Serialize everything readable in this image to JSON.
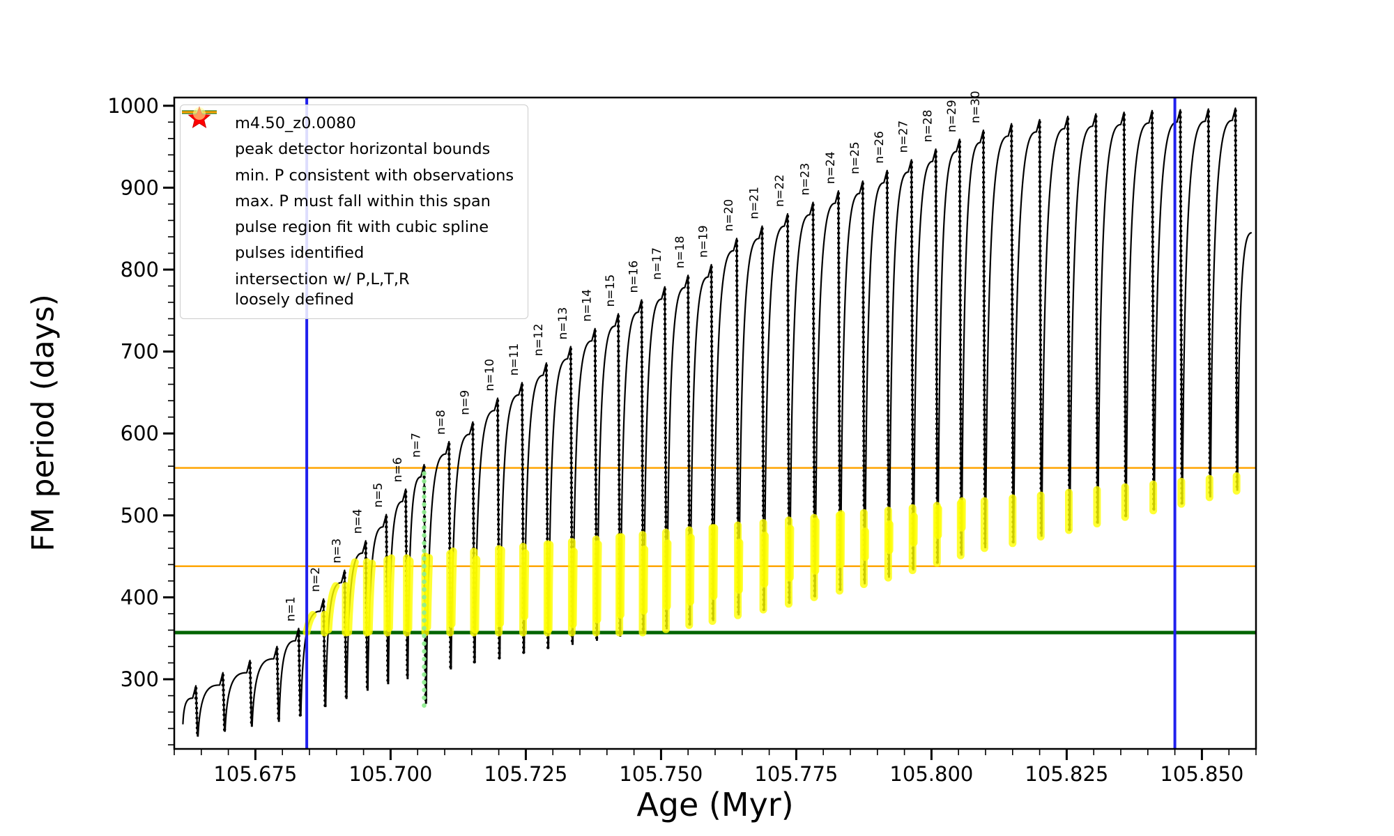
{
  "figure": {
    "background": "#ffffff"
  },
  "chart_data": {
    "type": "line",
    "title": "",
    "xlabel": "Age (Myr)",
    "ylabel": "FM period (days)",
    "xlim": [
      105.66,
      105.86
    ],
    "ylim": [
      215,
      1010
    ],
    "x_major_ticks": [
      105.675,
      105.7,
      105.725,
      105.75,
      105.775,
      105.8,
      105.825,
      105.85
    ],
    "x_minor_step": 0.005,
    "y_major_ticks": [
      300,
      400,
      500,
      600,
      700,
      800,
      900,
      1000
    ],
    "y_minor_step": 20,
    "series_label": "m4.50_z0.0080",
    "legend": {
      "position": "upper left",
      "entries": [
        {
          "marker": "line-dot",
          "icon": "series-line-icon",
          "color": "#000000",
          "label": "m4.50_z0.0080"
        },
        {
          "marker": "line-thick",
          "icon": "blue-bound-line-icon",
          "color": "#2020ee",
          "label": "peak detector horizontal bounds"
        },
        {
          "marker": "line-thick",
          "icon": "green-min-line-icon",
          "color": "#006400",
          "label": "min. P consistent with observations"
        },
        {
          "marker": "line",
          "icon": "orange-span-line-icon",
          "color": "#ffa500",
          "label": "max. P must fall within this span"
        },
        {
          "marker": "dot-small",
          "icon": "spline-dot-icon",
          "color": "#90ee90",
          "label": "pulse region fit with cubic spline"
        },
        {
          "marker": "star",
          "icon": "pulse-star-icon",
          "color": "#ff0000",
          "label": "pulses identified"
        },
        {
          "marker": "dot-large",
          "icon": "intersection-dot-icon",
          "color": "#ffff99",
          "label": "intersection w/ P,L,T,R\nloosely defined"
        }
      ]
    },
    "annotations": {
      "vlines": [
        {
          "x": 105.6845,
          "color": "#2020ee",
          "width": 4,
          "name": "peak-detector-left-bound"
        },
        {
          "x": 105.845,
          "color": "#2020ee",
          "width": 4,
          "name": "peak-detector-right-bound"
        }
      ],
      "hlines": [
        {
          "y": 357,
          "color": "#006400",
          "width": 5,
          "name": "min-period-line"
        },
        {
          "y": 438,
          "color": "#ffa500",
          "width": 2.5,
          "name": "max-period-span-lower"
        },
        {
          "y": 558,
          "color": "#ffa500",
          "width": 2.5,
          "name": "max-period-span-upper"
        }
      ],
      "green_dotted": {
        "x": 105.7062,
        "y_from": 268,
        "y_to": 560,
        "color": "#90ee90"
      },
      "yellow_band": {
        "x_start": 105.6876,
        "x_end": 105.8562,
        "y_min": 357,
        "y_top_start": 438,
        "y_top_end": 548,
        "color": "#ffff00"
      }
    },
    "start": {
      "x": 105.6612,
      "y": 245
    },
    "pulses": [
      {
        "x": 105.664,
        "peak": 292,
        "dip": 230
      },
      {
        "x": 105.669,
        "peak": 308,
        "dip": 236
      },
      {
        "x": 105.674,
        "peak": 323,
        "dip": 242
      },
      {
        "x": 105.679,
        "peak": 340,
        "dip": 248
      },
      {
        "x": 105.683,
        "peak": 362,
        "dip": 255,
        "label": "n=1"
      },
      {
        "x": 105.6876,
        "peak": 398,
        "dip": 266,
        "label": "n=2"
      },
      {
        "x": 105.6915,
        "peak": 433,
        "dip": 276,
        "label": "n=3"
      },
      {
        "x": 105.6954,
        "peak": 469,
        "dip": 286,
        "label": "n=4"
      },
      {
        "x": 105.6992,
        "peak": 501,
        "dip": 294,
        "label": "n=5"
      },
      {
        "x": 105.7028,
        "peak": 532,
        "dip": 300,
        "label": "n=6"
      },
      {
        "x": 105.7062,
        "peak": 562,
        "dip": 270,
        "label": "n=7"
      },
      {
        "x": 105.7108,
        "peak": 590,
        "dip": 312,
        "label": "n=8"
      },
      {
        "x": 105.7152,
        "peak": 614,
        "dip": 320,
        "label": "n=9"
      },
      {
        "x": 105.7198,
        "peak": 643,
        "dip": 326,
        "label": "n=10"
      },
      {
        "x": 105.7243,
        "peak": 662,
        "dip": 332,
        "label": "n=11"
      },
      {
        "x": 105.7288,
        "peak": 686,
        "dip": 337,
        "label": "n=12"
      },
      {
        "x": 105.7333,
        "peak": 706,
        "dip": 342,
        "label": "n=13"
      },
      {
        "x": 105.7378,
        "peak": 728,
        "dip": 347,
        "label": "n=14"
      },
      {
        "x": 105.7421,
        "peak": 746,
        "dip": 352,
        "label": "n=15"
      },
      {
        "x": 105.7464,
        "peak": 763,
        "dip": 356,
        "label": "n=16"
      },
      {
        "x": 105.7507,
        "peak": 779,
        "dip": 361,
        "label": "n=17"
      },
      {
        "x": 105.755,
        "peak": 793,
        "dip": 366,
        "label": "n=18"
      },
      {
        "x": 105.7593,
        "peak": 806,
        "dip": 371,
        "label": "n=19"
      },
      {
        "x": 105.764,
        "peak": 838,
        "dip": 378,
        "label": "n=20"
      },
      {
        "x": 105.7687,
        "peak": 853,
        "dip": 385,
        "label": "n=21"
      },
      {
        "x": 105.7734,
        "peak": 868,
        "dip": 392,
        "label": "n=22"
      },
      {
        "x": 105.7781,
        "peak": 882,
        "dip": 400,
        "label": "n=23"
      },
      {
        "x": 105.7828,
        "peak": 896,
        "dip": 408,
        "label": "n=24"
      },
      {
        "x": 105.7873,
        "peak": 908,
        "dip": 416,
        "label": "n=25"
      },
      {
        "x": 105.7918,
        "peak": 921,
        "dip": 424,
        "label": "n=26"
      },
      {
        "x": 105.7963,
        "peak": 934,
        "dip": 433,
        "label": "n=27"
      },
      {
        "x": 105.8008,
        "peak": 947,
        "dip": 442,
        "label": "n=28"
      },
      {
        "x": 105.8052,
        "peak": 959,
        "dip": 451,
        "label": "n=29"
      },
      {
        "x": 105.8096,
        "peak": 970,
        "dip": 460,
        "label": "n=30"
      },
      {
        "x": 105.8148,
        "peak": 978,
        "dip": 466
      },
      {
        "x": 105.82,
        "peak": 983,
        "dip": 474
      },
      {
        "x": 105.8252,
        "peak": 987,
        "dip": 482
      },
      {
        "x": 105.8304,
        "peak": 990,
        "dip": 490
      },
      {
        "x": 105.8356,
        "peak": 992,
        "dip": 498
      },
      {
        "x": 105.8408,
        "peak": 994,
        "dip": 506
      },
      {
        "x": 105.846,
        "peak": 995,
        "dip": 514
      },
      {
        "x": 105.8512,
        "peak": 996,
        "dip": 522
      },
      {
        "x": 105.8562,
        "peak": 997,
        "dip": 530
      },
      {
        "x": 105.8592,
        "peak": 845,
        "dip": 845,
        "partial": true
      }
    ]
  }
}
